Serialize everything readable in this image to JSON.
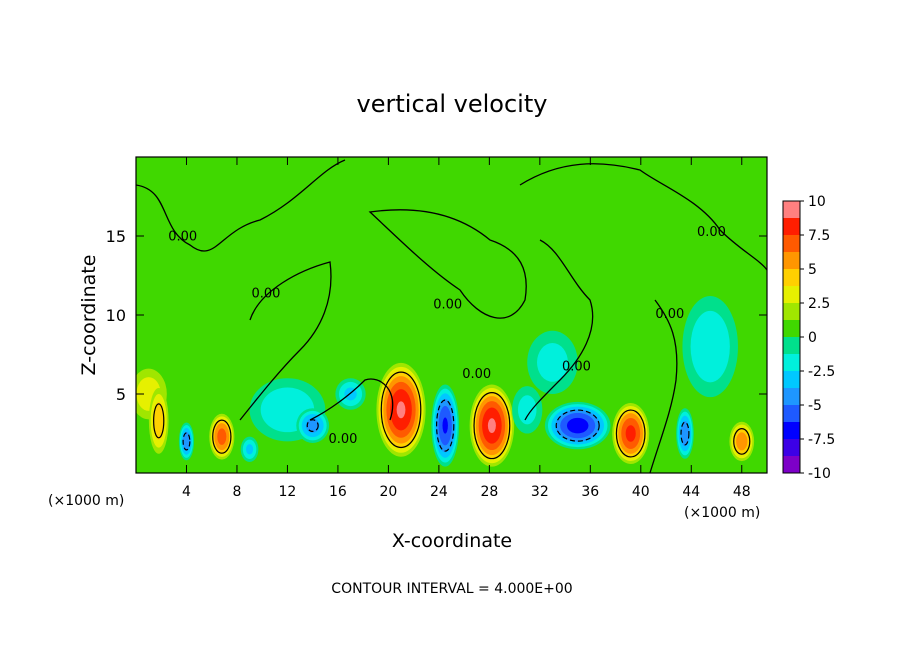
{
  "chart_data": {
    "type": "contour",
    "title": "vertical velocity",
    "x_label": "X-coordinate",
    "y_label": "Z-coordinate",
    "x_unit": "(×1000 m)",
    "x_unit_right": "(×1000 m)",
    "footnote": "CONTOUR INTERVAL = 4.000E+00",
    "contour_interval": 4,
    "xlim": [
      0,
      50
    ],
    "xticks": [
      4,
      8,
      12,
      16,
      20,
      24,
      28,
      32,
      36,
      40,
      44,
      48
    ],
    "ylim": [
      0,
      20
    ],
    "yticks": [
      5,
      10,
      15
    ],
    "clim": [
      -10,
      10
    ],
    "colorbar_ticks": [
      10,
      7.5,
      5,
      2.5,
      0,
      -2.5,
      -5,
      -7.5,
      -10
    ],
    "colorscale": [
      "#7d00c8",
      "#3c00e6",
      "#0000ff",
      "#1e5aff",
      "#1e96ff",
      "#00c8ff",
      "#00f0dc",
      "#00e08c",
      "#40d800",
      "#a0e600",
      "#e6f000",
      "#ffd000",
      "#ff9600",
      "#ff5a00",
      "#ff1e00",
      "#ff8080"
    ],
    "background": 0.5,
    "cells": [
      {
        "x": 1,
        "z": 5,
        "rx": 1.8,
        "rz": 2,
        "value": 3.5
      },
      {
        "x": 1.8,
        "z": 3.3,
        "rx": 0.9,
        "rz": 2.4,
        "value": 5
      },
      {
        "x": 4,
        "z": 2,
        "rx": 0.6,
        "rz": 1.2,
        "value": -5
      },
      {
        "x": 6.8,
        "z": 2.3,
        "rx": 1.1,
        "rz": 1.6,
        "value": 7
      },
      {
        "x": 9,
        "z": 1.5,
        "rx": 0.7,
        "rz": 0.8,
        "value": -3
      },
      {
        "x": 12,
        "z": 4,
        "rx": 3,
        "rz": 2,
        "value": -2.5
      },
      {
        "x": 14,
        "z": 3,
        "rx": 1.3,
        "rz": 1.1,
        "value": -4.5
      },
      {
        "x": 17,
        "z": 5,
        "rx": 1.2,
        "rz": 1,
        "value": -3
      },
      {
        "x": 21,
        "z": 4,
        "rx": 2.1,
        "rz": 3.2,
        "value": 9
      },
      {
        "x": 24.5,
        "z": 3,
        "rx": 1.1,
        "rz": 2.6,
        "value": -6.5
      },
      {
        "x": 28.2,
        "z": 3,
        "rx": 1.9,
        "rz": 2.8,
        "value": 9
      },
      {
        "x": 31,
        "z": 4,
        "rx": 1.2,
        "rz": 1.5,
        "value": -2
      },
      {
        "x": 33,
        "z": 7,
        "rx": 2,
        "rz": 2,
        "value": -2
      },
      {
        "x": 35,
        "z": 3,
        "rx": 2.6,
        "rz": 1.5,
        "value": -7
      },
      {
        "x": 39.2,
        "z": 2.5,
        "rx": 1.6,
        "rz": 2.1,
        "value": 8
      },
      {
        "x": 43.5,
        "z": 2.5,
        "rx": 0.7,
        "rz": 1.6,
        "value": -5
      },
      {
        "x": 45.5,
        "z": 8,
        "rx": 2.2,
        "rz": 3.2,
        "value": -2.5
      },
      {
        "x": 48,
        "z": 2,
        "rx": 1.1,
        "rz": 1.4,
        "value": 6
      }
    ],
    "contour_labels": [
      {
        "x": 3.7,
        "z": 14.7,
        "text": "0.00"
      },
      {
        "x": 10.3,
        "z": 11.1,
        "text": "0.00"
      },
      {
        "x": 16.4,
        "z": 1.9,
        "text": "0.00"
      },
      {
        "x": 24.7,
        "z": 10.4,
        "text": "0.00"
      },
      {
        "x": 27,
        "z": 6,
        "text": "0.00"
      },
      {
        "x": 34.9,
        "z": 6.5,
        "text": "0.00"
      },
      {
        "x": 42.3,
        "z": 9.8,
        "text": "0.00"
      },
      {
        "x": 45.6,
        "z": 15,
        "text": "0.00"
      }
    ]
  }
}
